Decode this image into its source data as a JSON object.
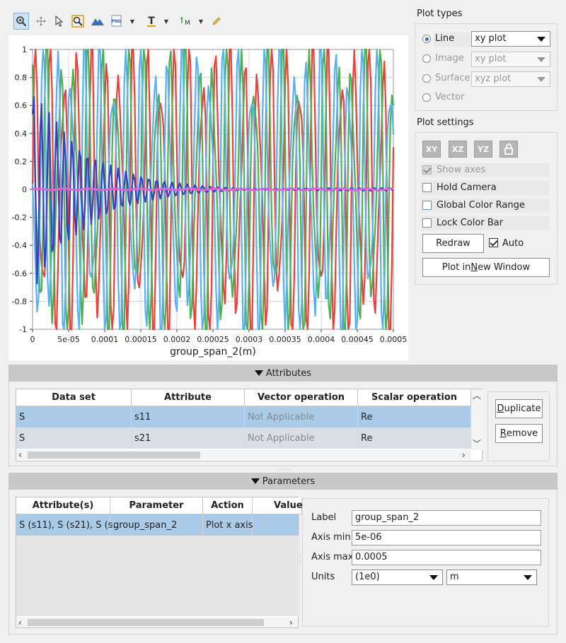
{
  "toolbar": {
    "items": [
      "zoom-icon",
      "pan-icon",
      "select-icon",
      "zoom-box-icon",
      "mountain-icon",
      "png-export-icon",
      "text-annotation-icon",
      "marker-icon",
      "pencil-icon"
    ],
    "png_label": "PNG",
    "marker_label": "M",
    "text_label": "T"
  },
  "chart_data": {
    "type": "line",
    "xlabel": "group_span_2(m)",
    "ylabel": "",
    "xlim": [
      0,
      0.0005
    ],
    "ylim": [
      -1,
      1
    ],
    "x_ticks": [
      "0",
      "5e-05",
      "0.0001",
      "0.00015",
      "0.0002",
      "0.00025",
      "0.0003",
      "0.00035",
      "0.0004",
      "0.00045",
      "0.0005"
    ],
    "y_ticks": [
      "1",
      "0.8",
      "0.6",
      "0.4",
      "0.2",
      "0",
      "-0.2",
      "-0.4",
      "-0.6",
      "-0.8",
      "-1"
    ],
    "grid": true,
    "series": [
      {
        "color": "#e8403a",
        "kind": "fast-oscillation",
        "amplitude": 1.0,
        "cycles": 26,
        "phase": 0.0
      },
      {
        "color": "#4caf50",
        "kind": "fast-oscillation",
        "amplitude": 1.0,
        "cycles": 26,
        "phase": 1.6
      },
      {
        "color": "#5ab0ee",
        "kind": "fast-oscillation",
        "amplitude": 1.0,
        "cycles": 26,
        "phase": 3.0
      },
      {
        "color": "#3b3dbf",
        "kind": "damped",
        "amplitude": 0.75,
        "cycles": 26,
        "phase": 0.8
      },
      {
        "color": "#d966d9",
        "kind": "flat",
        "amplitude": 0.0,
        "cycles": 0,
        "phase": 0.0
      }
    ]
  },
  "plot_types": {
    "title": "Plot types",
    "options": [
      {
        "label": "Line",
        "selected": true,
        "enabled": true,
        "select_value": "xy plot"
      },
      {
        "label": "Image",
        "selected": false,
        "enabled": false,
        "select_value": "xy plot"
      },
      {
        "label": "Surface",
        "selected": false,
        "enabled": false,
        "select_value": "xyz plot"
      },
      {
        "label": "Vector",
        "selected": false,
        "enabled": false,
        "select_value": ""
      }
    ]
  },
  "plot_settings": {
    "title": "Plot settings",
    "view_buttons": [
      "XY",
      "XZ",
      "YZ",
      "lock-icon"
    ],
    "show_axes": "Show axes",
    "hold_camera": "Hold Camera",
    "global_color_range": "Global Color Range",
    "lock_color_bar": "Lock Color Bar",
    "redraw": "Redraw",
    "auto": "Auto",
    "plot_new_window": "Plot in New Window",
    "plot_new_window_underline": "N"
  },
  "attributes": {
    "title": "Attributes",
    "columns": [
      "Data set",
      "Attribute",
      "Vector operation",
      "Scalar operation"
    ],
    "rows": [
      [
        "S",
        "s11",
        "Not Applicable",
        "Re"
      ],
      [
        "S",
        "s21",
        "Not Applicable",
        "Re"
      ]
    ],
    "duplicate": "Duplicate",
    "remove": "Remove"
  },
  "parameters": {
    "title": "Parameters",
    "columns": [
      "Attribute(s)",
      "Parameter",
      "Action",
      "Value"
    ],
    "rows": [
      [
        "S (s11), S (s21), S (s...",
        "group_span_2",
        "Plot x axis",
        ""
      ]
    ],
    "label_label": "Label",
    "label_value": "group_span_2",
    "axis_min_label": "Axis min",
    "axis_min_value": "5e-06",
    "axis_max_label": "Axis max",
    "axis_max_value": "0.0005",
    "units_label": "Units",
    "units_scale": "(1e0)",
    "units_value": "m"
  }
}
